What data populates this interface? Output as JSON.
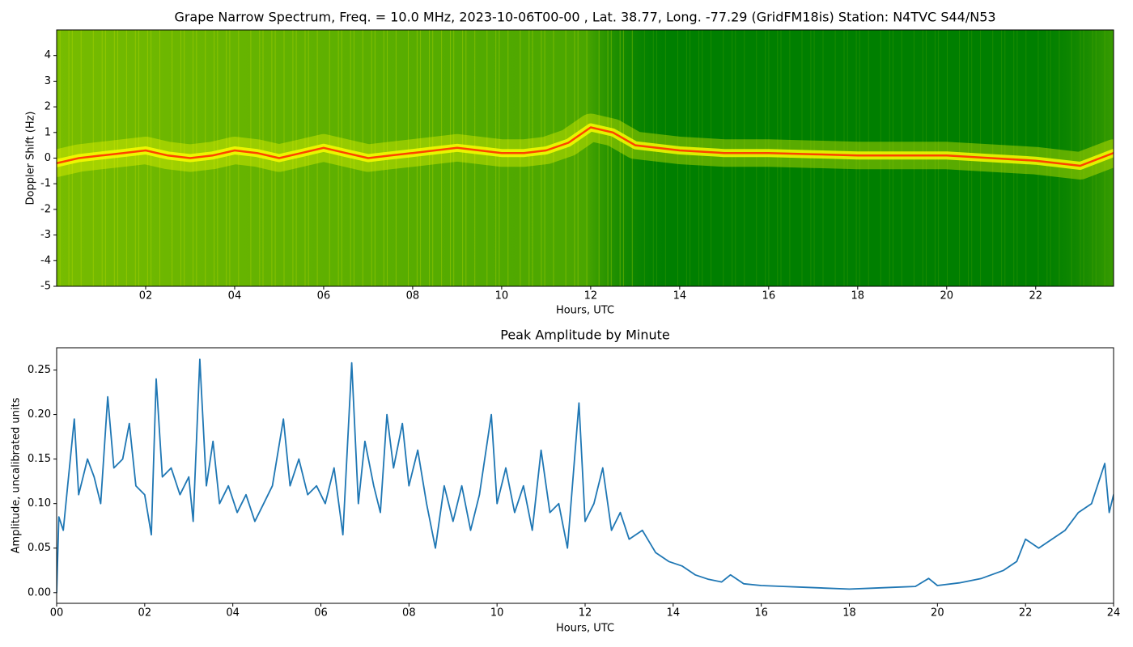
{
  "chart_data": [
    {
      "type": "spectrogram",
      "title": "Grape Narrow Spectrum, Freq. = 10.0 MHz, 2023-10-06T00-00 , Lat.  38.77, Long. -77.29 (GridFM18is) Station: N4TVC S44/N53",
      "xlabel": "Hours, UTC",
      "ylabel": "Doppler Shift (Hz)",
      "xlim": [
        0,
        23.75
      ],
      "ylim": [
        -5,
        5
      ],
      "xticks": [
        {
          "value": 2,
          "label": "02"
        },
        {
          "value": 4,
          "label": "04"
        },
        {
          "value": 6,
          "label": "06"
        },
        {
          "value": 8,
          "label": "08"
        },
        {
          "value": 10,
          "label": "10"
        },
        {
          "value": 12,
          "label": "12"
        },
        {
          "value": 14,
          "label": "14"
        },
        {
          "value": 16,
          "label": "16"
        },
        {
          "value": 18,
          "label": "18"
        },
        {
          "value": 20,
          "label": "20"
        },
        {
          "value": 22,
          "label": "22"
        }
      ],
      "yticks": [
        -5,
        -4,
        -3,
        -2,
        -1,
        0,
        1,
        2,
        3,
        4
      ],
      "colormap": [
        "#007f00",
        "#ffff00",
        "#ff3000"
      ],
      "x": [
        0,
        0.5,
        1,
        1.5,
        2,
        2.5,
        3,
        3.5,
        4,
        4.5,
        5,
        5.5,
        6,
        6.5,
        7,
        7.5,
        8,
        8.5,
        9,
        9.5,
        10,
        10.5,
        11,
        11.5,
        12,
        12.5,
        13,
        14,
        15,
        16,
        17,
        18,
        19,
        20,
        21,
        22,
        23,
        23.75
      ],
      "values": [
        -0.2,
        0.0,
        0.1,
        0.2,
        0.3,
        0.1,
        0.0,
        0.1,
        0.3,
        0.2,
        0.0,
        0.2,
        0.4,
        0.2,
        0.0,
        0.1,
        0.2,
        0.3,
        0.4,
        0.3,
        0.2,
        0.2,
        0.3,
        0.6,
        1.2,
        1.0,
        0.5,
        0.3,
        0.2,
        0.2,
        0.15,
        0.1,
        0.1,
        0.1,
        0.0,
        -0.1,
        -0.3,
        0.2
      ]
    },
    {
      "type": "line",
      "title": "Peak Amplitude by Minute",
      "xlabel": "Hours, UTC",
      "ylabel": "Amplitude, uncalibrated units",
      "xlim": [
        0,
        24
      ],
      "ylim": [
        -0.012,
        0.275
      ],
      "xticks": [
        {
          "value": 0,
          "label": "00"
        },
        {
          "value": 2,
          "label": "02"
        },
        {
          "value": 4,
          "label": "04"
        },
        {
          "value": 6,
          "label": "06"
        },
        {
          "value": 8,
          "label": "08"
        },
        {
          "value": 10,
          "label": "10"
        },
        {
          "value": 12,
          "label": "12"
        },
        {
          "value": 14,
          "label": "14"
        },
        {
          "value": 16,
          "label": "16"
        },
        {
          "value": 18,
          "label": "18"
        },
        {
          "value": 20,
          "label": "20"
        },
        {
          "value": 22,
          "label": "22"
        },
        {
          "value": 24,
          "label": "24"
        }
      ],
      "yticks": [
        {
          "value": 0,
          "label": "0.00"
        },
        0.05,
        {
          "value": 0.1,
          "label": "0.10"
        },
        0.15,
        {
          "value": 0.2,
          "label": "0.20"
        },
        0.25
      ],
      "color": "#1f77b4",
      "x": [
        0,
        0.05,
        0.15,
        0.25,
        0.4,
        0.5,
        0.7,
        0.85,
        1.0,
        1.16,
        1.3,
        1.5,
        1.65,
        1.8,
        2.0,
        2.15,
        2.26,
        2.4,
        2.6,
        2.8,
        3.0,
        3.1,
        3.25,
        3.4,
        3.55,
        3.7,
        3.9,
        4.1,
        4.3,
        4.5,
        4.7,
        4.9,
        5.15,
        5.3,
        5.5,
        5.7,
        5.9,
        6.1,
        6.3,
        6.5,
        6.7,
        6.85,
        7.0,
        7.2,
        7.35,
        7.5,
        7.65,
        7.85,
        8.0,
        8.2,
        8.4,
        8.6,
        8.8,
        9.0,
        9.2,
        9.4,
        9.6,
        9.87,
        10.0,
        10.2,
        10.4,
        10.6,
        10.8,
        11.0,
        11.2,
        11.4,
        11.6,
        11.86,
        12.0,
        12.2,
        12.4,
        12.6,
        12.8,
        13.0,
        13.3,
        13.6,
        13.9,
        14.2,
        14.5,
        14.8,
        15.1,
        15.3,
        15.6,
        16.0,
        16.5,
        17.0,
        17.5,
        18.0,
        18.5,
        19.0,
        19.5,
        19.8,
        20.0,
        20.5,
        21.0,
        21.5,
        21.8,
        22.0,
        22.3,
        22.6,
        22.9,
        23.2,
        23.5,
        23.8,
        23.9,
        24.0
      ],
      "values": [
        0.0,
        0.085,
        0.07,
        0.12,
        0.195,
        0.11,
        0.15,
        0.13,
        0.1,
        0.22,
        0.14,
        0.15,
        0.19,
        0.12,
        0.11,
        0.065,
        0.24,
        0.13,
        0.14,
        0.11,
        0.13,
        0.08,
        0.262,
        0.12,
        0.17,
        0.1,
        0.12,
        0.09,
        0.11,
        0.08,
        0.1,
        0.12,
        0.195,
        0.12,
        0.15,
        0.11,
        0.12,
        0.1,
        0.14,
        0.065,
        0.258,
        0.1,
        0.17,
        0.12,
        0.09,
        0.2,
        0.14,
        0.19,
        0.12,
        0.16,
        0.1,
        0.05,
        0.12,
        0.08,
        0.12,
        0.07,
        0.11,
        0.2,
        0.1,
        0.14,
        0.09,
        0.12,
        0.07,
        0.16,
        0.09,
        0.1,
        0.05,
        0.213,
        0.08,
        0.1,
        0.14,
        0.07,
        0.09,
        0.06,
        0.07,
        0.045,
        0.035,
        0.03,
        0.02,
        0.015,
        0.012,
        0.02,
        0.01,
        0.008,
        0.007,
        0.006,
        0.005,
        0.004,
        0.005,
        0.006,
        0.007,
        0.016,
        0.008,
        0.011,
        0.016,
        0.025,
        0.035,
        0.06,
        0.05,
        0.06,
        0.07,
        0.09,
        0.1,
        0.145,
        0.09,
        0.11
      ]
    }
  ]
}
